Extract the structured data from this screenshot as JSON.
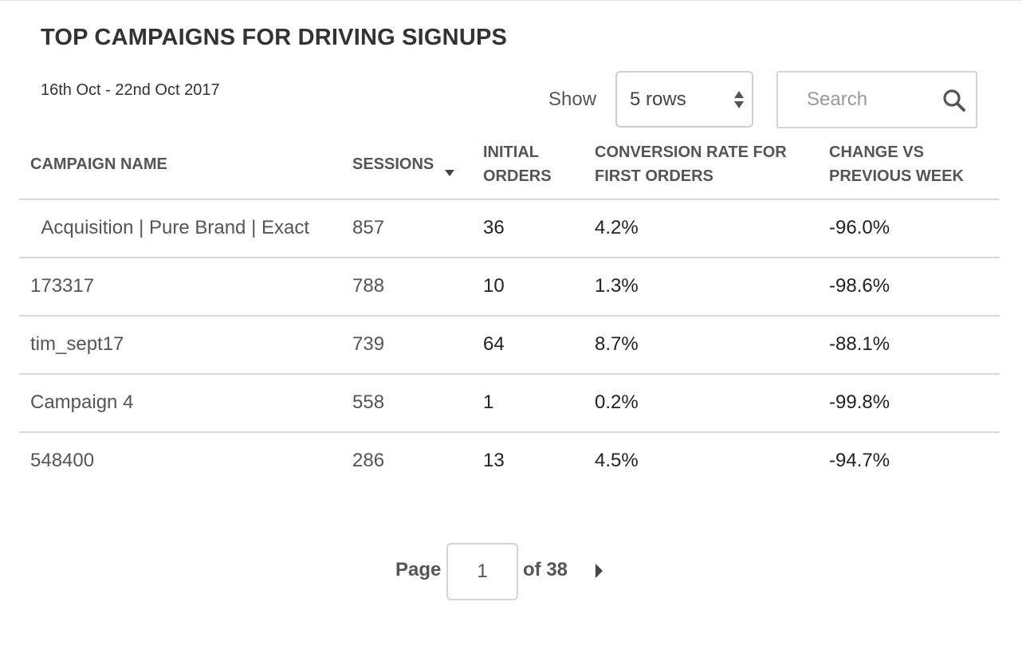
{
  "header": {
    "title": "TOP CAMPAIGNS FOR DRIVING SIGNUPS",
    "date_range": "16th Oct - 22nd Oct 2017"
  },
  "controls": {
    "show_label": "Show",
    "rows_select": {
      "selected": "5 rows",
      "icon": "select-arrows-icon"
    },
    "search": {
      "placeholder": "Search",
      "value": "",
      "icon": "search-icon"
    }
  },
  "table": {
    "columns": [
      {
        "label": "CAMPAIGN NAME",
        "sorted": false
      },
      {
        "label": "SESSIONS",
        "sorted": true,
        "sort_direction": "descending"
      },
      {
        "label": "INITIAL ORDERS",
        "sorted": false
      },
      {
        "label": "CONVERSION RATE FOR FIRST ORDERS",
        "sorted": false
      },
      {
        "label": "CHANGE VS PREVIOUS WEEK",
        "sorted": false
      }
    ],
    "rows": [
      {
        "campaign": "Acquisition | Pure Brand | Exact",
        "sessions": "857",
        "initial_orders": "36",
        "conversion_rate": "4.2%",
        "change": "-96.0%"
      },
      {
        "campaign": "173317",
        "sessions": "788",
        "initial_orders": "10",
        "conversion_rate": "1.3%",
        "change": "-98.6%"
      },
      {
        "campaign": "tim_sept17",
        "sessions": "739",
        "initial_orders": "64",
        "conversion_rate": "8.7%",
        "change": "-88.1%"
      },
      {
        "campaign": "Campaign 4",
        "sessions": "558",
        "initial_orders": "1",
        "conversion_rate": "0.2%",
        "change": "-99.8%"
      },
      {
        "campaign": "548400",
        "sessions": "286",
        "initial_orders": "13",
        "conversion_rate": "4.5%",
        "change": "-94.7%"
      }
    ]
  },
  "pagination": {
    "page_label": "Page",
    "current_page": "1",
    "of_label": "of 38",
    "next_icon": "caret-right-icon"
  }
}
